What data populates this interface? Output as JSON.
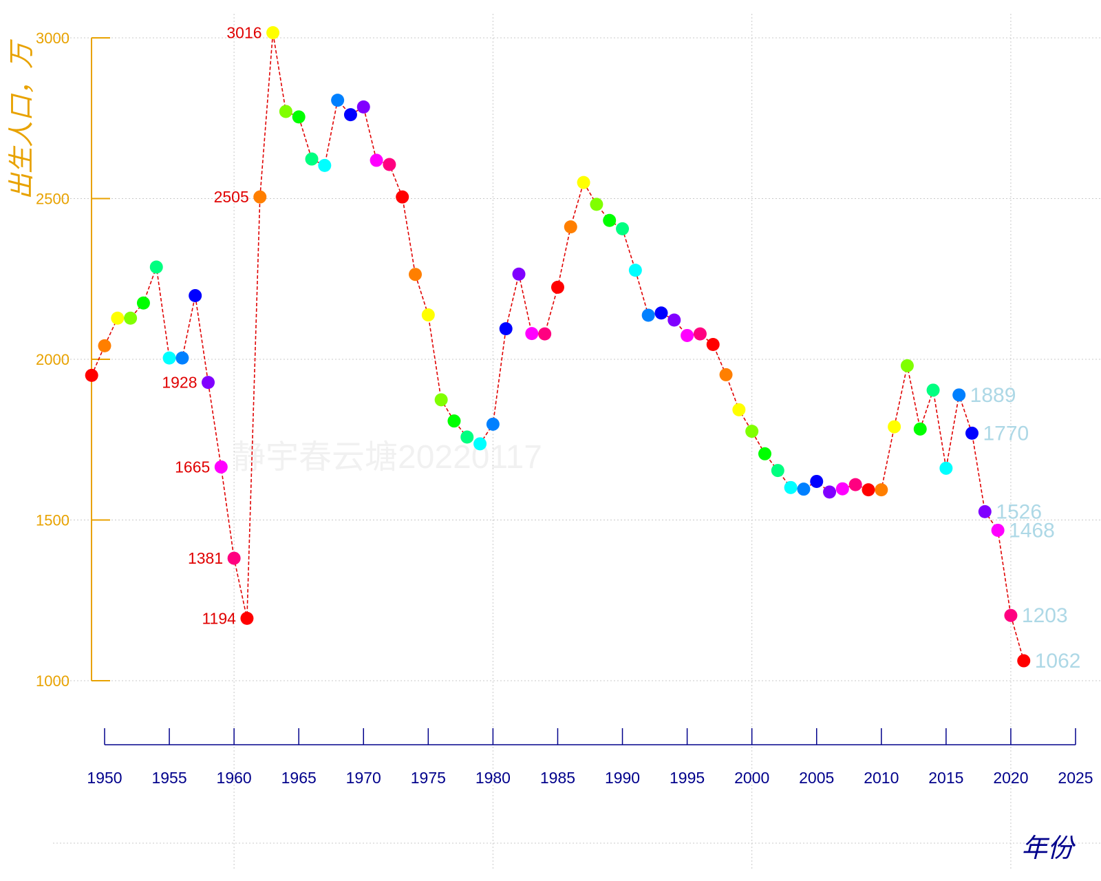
{
  "chart_data": {
    "type": "line",
    "title": "",
    "xlabel": "年份",
    "ylabel": "出生人口，万",
    "watermark": "静宇春云塘20220117",
    "xlim": [
      1946,
      2026
    ],
    "ylim": [
      790,
      3040
    ],
    "x_ticks": [
      1950,
      1955,
      1960,
      1965,
      1970,
      1975,
      1980,
      1985,
      1990,
      1995,
      2000,
      2005,
      2010,
      2015,
      2020,
      2025
    ],
    "y_ticks": [
      1000,
      1500,
      2000,
      2500,
      3000
    ],
    "grid": true,
    "line_color": "#e00000",
    "line_style": "dashed",
    "red_label_color": "#e00000",
    "blue_label_color": "#add8e6",
    "point_palette": [
      "#ff0000",
      "#ff7f00",
      "#ffff00",
      "#80ff00",
      "#00ff00",
      "#00ff80",
      "#00ffff",
      "#0080ff",
      "#0000ff",
      "#8000ff",
      "#ff00ff",
      "#ff0080"
    ],
    "series": [
      {
        "x": [
          1949,
          1950,
          1951,
          1952,
          1953,
          1954,
          1955,
          1956,
          1957,
          1958,
          1959,
          1960,
          1961,
          1962,
          1963,
          1964,
          1965,
          1966,
          1967,
          1968,
          1969,
          1970,
          1971,
          1972,
          1973,
          1974,
          1975,
          1976,
          1977,
          1978,
          1979,
          1980,
          1981,
          1982,
          1983,
          1984,
          1985,
          1986,
          1987,
          1988,
          1989,
          1990,
          1991,
          1992,
          1993,
          1994,
          1995,
          1996,
          1997,
          1998,
          1999,
          2000,
          2001,
          2002,
          2003,
          2004,
          2005,
          2006,
          2007,
          2008,
          2009,
          2010,
          2011,
          2012,
          2013,
          2014,
          2015,
          2016,
          2017,
          2018,
          2019,
          2020,
          2021
        ],
        "y": [
          1950,
          2042,
          2128,
          2128,
          2175,
          2287,
          2004,
          2004,
          2198,
          1928,
          1665,
          1381,
          1194,
          2505,
          3016,
          2771,
          2754,
          2623,
          2603,
          2806,
          2761,
          2785,
          2619,
          2606,
          2505,
          2264,
          2138,
          1874,
          1808,
          1758,
          1737,
          1798,
          2095,
          2265,
          2080,
          2079,
          2224,
          2412,
          2550,
          2482,
          2432,
          2406,
          2277,
          2137,
          2144,
          2122,
          2074,
          2079,
          2046,
          1952,
          1843,
          1776,
          1706,
          1654,
          1601,
          1596,
          1620,
          1587,
          1597,
          1610,
          1594,
          1594,
          1790,
          1980,
          1783,
          1904,
          1661,
          1889,
          1770,
          1526,
          1468,
          1203,
          1062
        ]
      }
    ],
    "annotations": [
      {
        "x": 1958,
        "y": 1928,
        "text": "1928",
        "side": "left",
        "style": "red"
      },
      {
        "x": 1959,
        "y": 1665,
        "text": "1665",
        "side": "left",
        "style": "red"
      },
      {
        "x": 1960,
        "y": 1381,
        "text": "1381",
        "side": "left",
        "style": "red"
      },
      {
        "x": 1961,
        "y": 1194,
        "text": "1194",
        "side": "left",
        "style": "red"
      },
      {
        "x": 1962,
        "y": 2505,
        "text": "2505",
        "side": "left",
        "style": "red"
      },
      {
        "x": 1963,
        "y": 3016,
        "text": "3016",
        "side": "left",
        "style": "red"
      },
      {
        "x": 2016,
        "y": 1889,
        "text": "1889",
        "side": "right",
        "style": "blue"
      },
      {
        "x": 2017,
        "y": 1770,
        "text": "1770",
        "side": "right",
        "style": "blue"
      },
      {
        "x": 2018,
        "y": 1526,
        "text": "1526",
        "side": "right",
        "style": "blue"
      },
      {
        "x": 2019,
        "y": 1468,
        "text": "1468",
        "side": "right",
        "style": "blue"
      },
      {
        "x": 2020,
        "y": 1203,
        "text": "1203",
        "side": "right",
        "style": "blue"
      },
      {
        "x": 2021,
        "y": 1062,
        "text": "1062",
        "side": "right",
        "style": "blue"
      }
    ]
  }
}
